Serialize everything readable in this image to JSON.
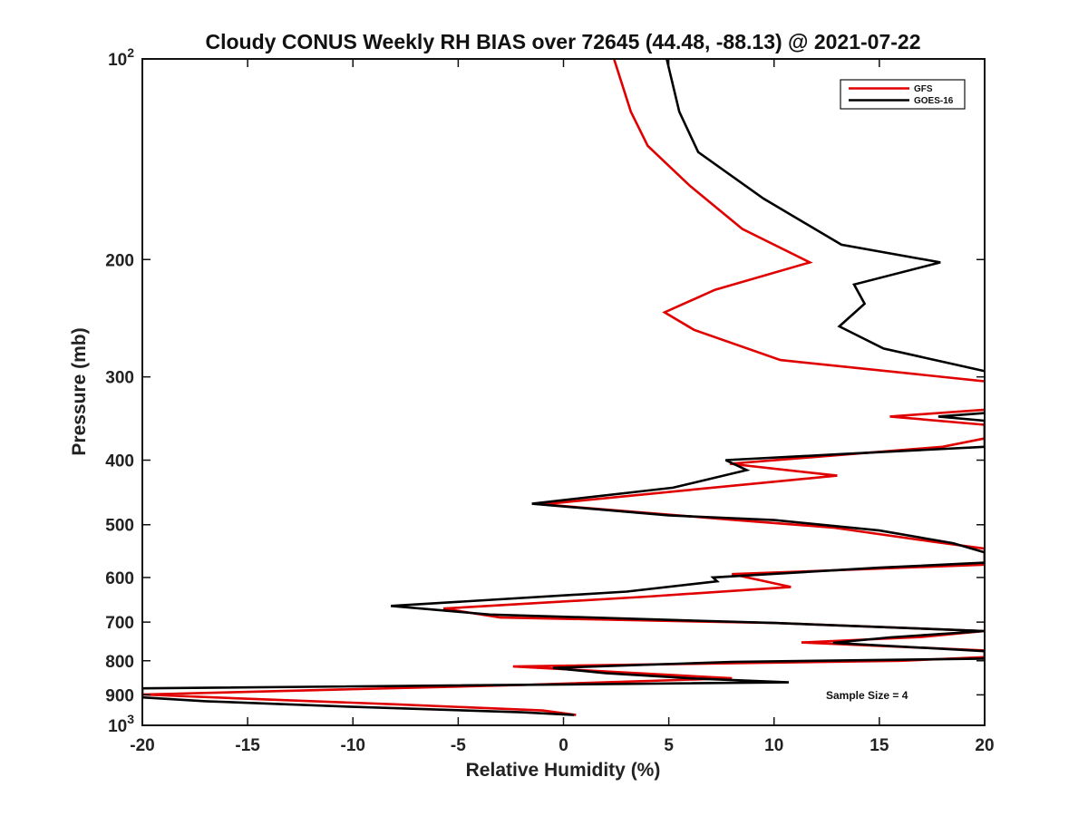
{
  "chart_data": {
    "type": "line",
    "title": "Cloudy CONUS Weekly RH BIAS over 72645 (44.48, -88.13) @ 2021-07-22",
    "xlabel": "Relative Humidity (%)",
    "ylabel": "Pressure (mb)",
    "xlim": [
      -20,
      20
    ],
    "ylim": [
      100,
      1000
    ],
    "yscale": "log",
    "y_reversed": true,
    "grid": false,
    "legend_position": "top-right",
    "x_ticks": [
      "-20",
      "-15",
      "-10",
      "-5",
      "0",
      "5",
      "10",
      "15",
      "20"
    ],
    "y_ticks": [
      {
        "value": 100,
        "base": "10",
        "exp": "2"
      },
      {
        "value": 200,
        "label": "200"
      },
      {
        "value": 300,
        "label": "300"
      },
      {
        "value": 400,
        "label": "400"
      },
      {
        "value": 500,
        "label": "500"
      },
      {
        "value": 600,
        "label": "600"
      },
      {
        "value": 700,
        "label": "700"
      },
      {
        "value": 800,
        "label": "800"
      },
      {
        "value": 900,
        "label": "900"
      },
      {
        "value": 1000,
        "base": "10",
        "exp": "3"
      }
    ],
    "annotation": "Sample Size = 4",
    "series": [
      {
        "name": "GFS",
        "color": "#e00000",
        "points": [
          [
            2.4,
            100
          ],
          [
            3.2,
            120
          ],
          [
            4.0,
            135
          ],
          [
            6.0,
            155
          ],
          [
            8.5,
            180
          ],
          [
            11.7,
            202
          ],
          [
            7.2,
            222
          ],
          [
            4.8,
            240
          ],
          [
            6.2,
            255
          ],
          [
            10.3,
            283
          ],
          [
            20.2,
            305
          ],
          [
            20,
            336
          ],
          [
            15.5,
            344
          ],
          [
            20,
            354
          ],
          [
            20,
            371
          ],
          [
            18.0,
            382
          ],
          [
            7.9,
            405
          ],
          [
            13.0,
            422
          ],
          [
            5.8,
            444
          ],
          [
            -1.0,
            466
          ],
          [
            7.8,
            491
          ],
          [
            12.8,
            505
          ],
          [
            17.5,
            530
          ],
          [
            20,
            543
          ],
          [
            20,
            574
          ],
          [
            8.0,
            593
          ],
          [
            10.8,
            620
          ],
          [
            4.0,
            641
          ],
          [
            -5.7,
            668
          ],
          [
            -3.0,
            689
          ],
          [
            10.0,
            702
          ],
          [
            20,
            722
          ],
          [
            17.0,
            737
          ],
          [
            11.3,
            751
          ],
          [
            20,
            772
          ],
          [
            20,
            790
          ],
          [
            16.0,
            800
          ],
          [
            -2.4,
            816
          ],
          [
            2.0,
            830
          ],
          [
            8.0,
            850
          ],
          [
            -2.0,
            870
          ],
          [
            -20,
            899
          ],
          [
            -14.0,
            915
          ],
          [
            -8.0,
            930
          ],
          [
            -1.0,
            950
          ],
          [
            0.6,
            965
          ]
        ]
      },
      {
        "name": "GOES-16",
        "color": "#000000",
        "points": [
          [
            4.9,
            100
          ],
          [
            5.5,
            120
          ],
          [
            6.4,
            138
          ],
          [
            9.5,
            162
          ],
          [
            13.2,
            190
          ],
          [
            17.9,
            202
          ],
          [
            13.8,
            218
          ],
          [
            14.3,
            233
          ],
          [
            13.1,
            252
          ],
          [
            15.2,
            272
          ],
          [
            20.2,
            295
          ],
          [
            20,
            340
          ],
          [
            17.8,
            344
          ],
          [
            20,
            349
          ],
          [
            20,
            382
          ],
          [
            13.0,
            392
          ],
          [
            7.7,
            400
          ],
          [
            8.7,
            414
          ],
          [
            5.2,
            440
          ],
          [
            -1.5,
            465
          ],
          [
            5.0,
            484
          ],
          [
            10.0,
            492
          ],
          [
            15.0,
            510
          ],
          [
            18.5,
            533
          ],
          [
            20,
            550
          ],
          [
            20,
            570
          ],
          [
            15.0,
            580
          ],
          [
            7.1,
            600
          ],
          [
            7.3,
            608
          ],
          [
            3.0,
            630
          ],
          [
            -8.2,
            662
          ],
          [
            -3.5,
            682
          ],
          [
            10.0,
            702
          ],
          [
            20,
            722
          ],
          [
            15.5,
            738
          ],
          [
            12.8,
            752
          ],
          [
            20,
            774
          ],
          [
            20,
            794
          ],
          [
            8.0,
            803
          ],
          [
            -0.5,
            820
          ],
          [
            2.0,
            835
          ],
          [
            6.0,
            850
          ],
          [
            10.7,
            862
          ],
          [
            -20,
            880
          ],
          [
            -20,
            908
          ],
          [
            -17.0,
            920
          ],
          [
            -10.0,
            938
          ],
          [
            -2.0,
            956
          ],
          [
            0.5,
            965
          ]
        ]
      }
    ]
  }
}
